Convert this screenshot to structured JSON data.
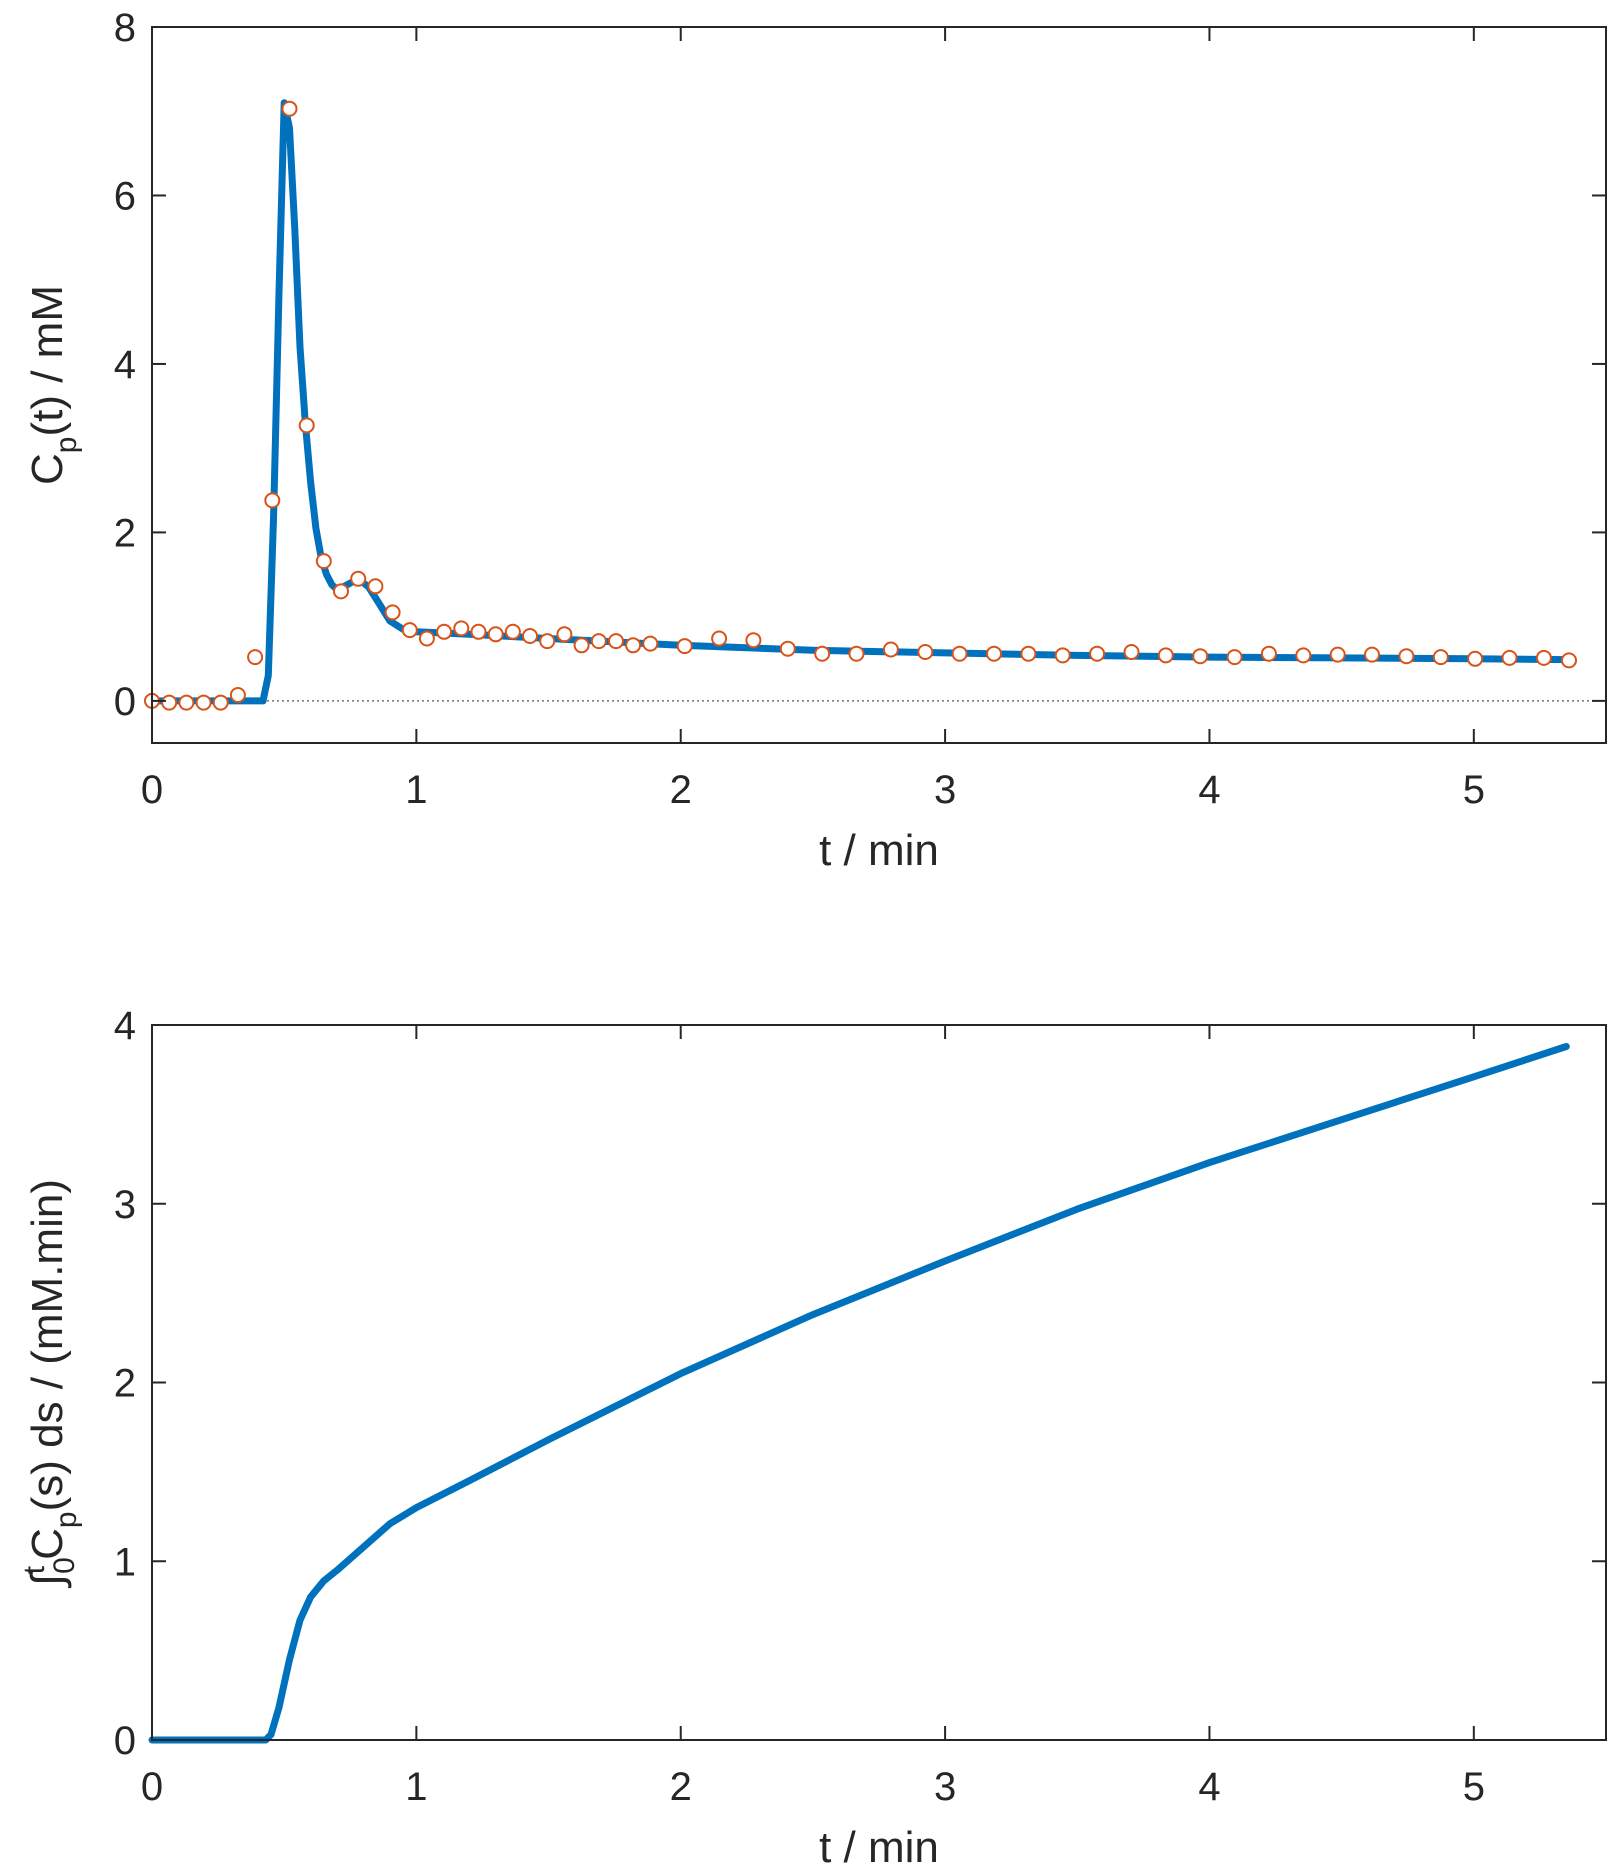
{
  "chart_data": [
    {
      "type": "line",
      "name": "plasma-concentration",
      "xlabel": "t / min",
      "ylabel": {
        "main": "C",
        "subscript": "p",
        "rest": "(t) / mM"
      },
      "xlim": [
        0,
        5.5
      ],
      "ylim": [
        -0.5,
        8
      ],
      "xticks": [
        0,
        1,
        2,
        3,
        4,
        5
      ],
      "xtick_labels": [
        "0",
        "1",
        "2",
        "3",
        "4",
        "5"
      ],
      "yticks": [
        0,
        2,
        4,
        6,
        8
      ],
      "ytick_labels": [
        "0",
        "2",
        "4",
        "6",
        "8"
      ],
      "zero_line": true,
      "colors": {
        "fit": "#0072BD",
        "data": "#D95319",
        "zero": "#555555",
        "axis": "#262626"
      },
      "series": [
        {
          "name": "fit",
          "style": "line",
          "x": [
            0,
            0.3,
            0.42,
            0.44,
            0.46,
            0.48,
            0.5,
            0.52,
            0.54,
            0.56,
            0.58,
            0.6,
            0.62,
            0.64,
            0.66,
            0.68,
            0.7,
            0.74,
            0.78,
            0.82,
            0.86,
            0.9,
            0.95,
            1.0,
            1.2,
            1.5,
            2.0,
            2.5,
            3.0,
            3.5,
            4.0,
            4.5,
            5.0,
            5.35
          ],
          "y": [
            0,
            0,
            0,
            0.3,
            2.2,
            4.8,
            7.1,
            6.8,
            5.6,
            4.2,
            3.3,
            2.6,
            2.05,
            1.7,
            1.5,
            1.38,
            1.32,
            1.38,
            1.45,
            1.35,
            1.15,
            0.95,
            0.85,
            0.82,
            0.79,
            0.74,
            0.66,
            0.6,
            0.57,
            0.54,
            0.52,
            0.51,
            0.5,
            0.49
          ]
        },
        {
          "name": "data",
          "style": "markers",
          "x": [
            0,
            0.065,
            0.13,
            0.195,
            0.26,
            0.325,
            0.39,
            0.455,
            0.52,
            0.585,
            0.65,
            0.715,
            0.78,
            0.845,
            0.91,
            0.975,
            1.04,
            1.105,
            1.17,
            1.235,
            1.3,
            1.365,
            1.43,
            1.495,
            1.56,
            1.625,
            1.69,
            1.755,
            1.82,
            1.885,
            2.015,
            2.145,
            2.275,
            2.405,
            2.535,
            2.665,
            2.795,
            2.925,
            3.055,
            3.185,
            3.315,
            3.445,
            3.575,
            3.705,
            3.835,
            3.965,
            4.095,
            4.225,
            4.355,
            4.485,
            4.615,
            4.745,
            4.875,
            5.005,
            5.135,
            5.265,
            5.36
          ],
          "y": [
            0,
            -0.02,
            -0.02,
            -0.02,
            -0.02,
            0.07,
            0.52,
            2.38,
            7.03,
            3.27,
            1.66,
            1.3,
            1.45,
            1.36,
            1.05,
            0.84,
            0.74,
            0.82,
            0.86,
            0.82,
            0.79,
            0.82,
            0.77,
            0.71,
            0.79,
            0.66,
            0.71,
            0.71,
            0.66,
            0.68,
            0.65,
            0.74,
            0.72,
            0.62,
            0.56,
            0.56,
            0.61,
            0.58,
            0.56,
            0.56,
            0.56,
            0.54,
            0.56,
            0.58,
            0.54,
            0.53,
            0.52,
            0.56,
            0.54,
            0.55,
            0.55,
            0.53,
            0.52,
            0.5,
            0.51,
            0.51,
            0.48
          ]
        }
      ]
    },
    {
      "type": "line",
      "name": "integrated-concentration",
      "xlabel": "t / min",
      "ylabel": {
        "main": "∫",
        "subscript": "0",
        "superscript": "t",
        "rest1": "C",
        "sub2": "p",
        "rest2": "(s) ds / (mM.min)"
      },
      "xlim": [
        0,
        5.5
      ],
      "ylim": [
        0,
        4
      ],
      "xticks": [
        0,
        1,
        2,
        3,
        4,
        5
      ],
      "xtick_labels": [
        "0",
        "1",
        "2",
        "3",
        "4",
        "5"
      ],
      "yticks": [
        0,
        1,
        2,
        3,
        4
      ],
      "ytick_labels": [
        "0",
        "1",
        "2",
        "3",
        "4"
      ],
      "colors": {
        "fit": "#0072BD",
        "axis": "#262626"
      },
      "series": [
        {
          "name": "cumulative",
          "style": "line",
          "x": [
            0,
            0.43,
            0.45,
            0.48,
            0.52,
            0.56,
            0.6,
            0.65,
            0.7,
            0.8,
            0.9,
            1.0,
            1.2,
            1.5,
            2.0,
            2.5,
            3.0,
            3.5,
            4.0,
            4.5,
            5.0,
            5.35
          ],
          "y": [
            0,
            0,
            0.03,
            0.18,
            0.45,
            0.67,
            0.8,
            0.89,
            0.95,
            1.08,
            1.21,
            1.3,
            1.45,
            1.68,
            2.05,
            2.38,
            2.68,
            2.97,
            3.23,
            3.47,
            3.71,
            3.88
          ]
        }
      ]
    }
  ]
}
